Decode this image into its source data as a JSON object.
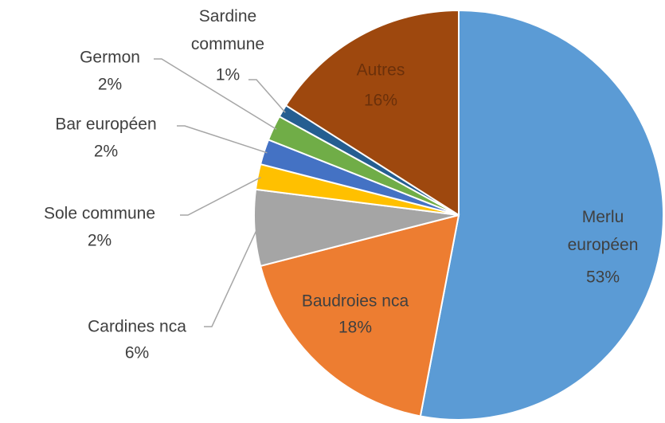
{
  "chart_data": {
    "type": "pie",
    "categories": [
      "Merlu européen",
      "Baudroies nca",
      "Cardines nca",
      "Sole commune",
      "Bar européen",
      "Germon",
      "Sardine commune",
      "Autres"
    ],
    "values": [
      53,
      18,
      6,
      2,
      2,
      2,
      1,
      16
    ],
    "value_labels": [
      "53%",
      "18%",
      "6%",
      "2%",
      "2%",
      "2%",
      "1%",
      "16%"
    ],
    "colors": [
      "#5b9bd5",
      "#ed7d31",
      "#a5a5a5",
      "#ffc000",
      "#4472c4",
      "#70ad47",
      "#255e91",
      "#9e480e"
    ]
  }
}
